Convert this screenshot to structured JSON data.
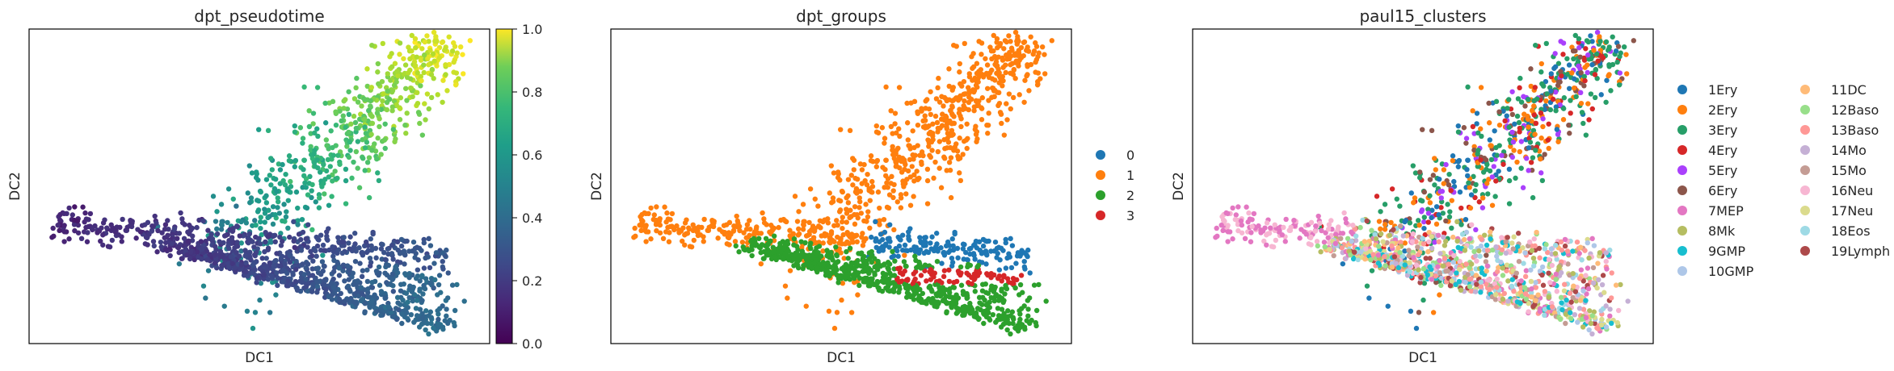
{
  "chart_data": [
    {
      "type": "scatter",
      "title": "dpt_pseudotime",
      "xlabel": "DC1",
      "ylabel": "DC2",
      "color_by": "continuous",
      "colorbar": {
        "ticks": [
          "0.0",
          "0.2",
          "0.4",
          "0.6",
          "0.8",
          "1.0"
        ],
        "range": [
          0,
          1
        ],
        "colormap": "viridis"
      },
      "grid": false,
      "data_features": [
        {
          "name": "upper_arm",
          "from": [
            0.42,
            0.28
          ],
          "to": [
            0.9,
            0.97
          ],
          "value_range": [
            0.4,
            1.0
          ]
        },
        {
          "name": "left_arm",
          "from": [
            0.05,
            0.38
          ],
          "to": [
            0.92,
            0.3
          ],
          "value_range": [
            0.1,
            0.3
          ]
        },
        {
          "name": "lower_arm",
          "from": [
            0.3,
            0.32
          ],
          "to": [
            0.92,
            0.05
          ],
          "value_range": [
            0.15,
            0.35
          ]
        }
      ]
    },
    {
      "type": "scatter",
      "title": "dpt_groups",
      "xlabel": "DC1",
      "ylabel": "DC2",
      "legend": {
        "placement": "right",
        "entries": [
          "0",
          "1",
          "2",
          "3"
        ]
      },
      "colors": [
        "#1f77b4",
        "#ff7f0e",
        "#2ca02c",
        "#d62728"
      ],
      "grid": false
    },
    {
      "type": "scatter",
      "title": "paul15_clusters",
      "xlabel": "DC1",
      "ylabel": "DC2",
      "legend": {
        "placement": "right",
        "columns": 2,
        "entries": [
          "1Ery",
          "2Ery",
          "3Ery",
          "4Ery",
          "5Ery",
          "6Ery",
          "7MEP",
          "8Mk",
          "9GMP",
          "10GMP",
          "11DC",
          "12Baso",
          "13Baso",
          "14Mo",
          "15Mo",
          "16Neu",
          "17Neu",
          "18Eos",
          "19Lymph"
        ]
      },
      "colors": [
        "#1f77b4",
        "#ff7f0e",
        "#279e68",
        "#d62728",
        "#aa40fc",
        "#8c564b",
        "#e377c2",
        "#b5bd61",
        "#17becf",
        "#aec7e8",
        "#ffbb78",
        "#98df8a",
        "#ff9896",
        "#c5b0d5",
        "#c49c94",
        "#f7b6d2",
        "#dbdb8d",
        "#9edae5",
        "#ad494a"
      ],
      "grid": false
    }
  ]
}
